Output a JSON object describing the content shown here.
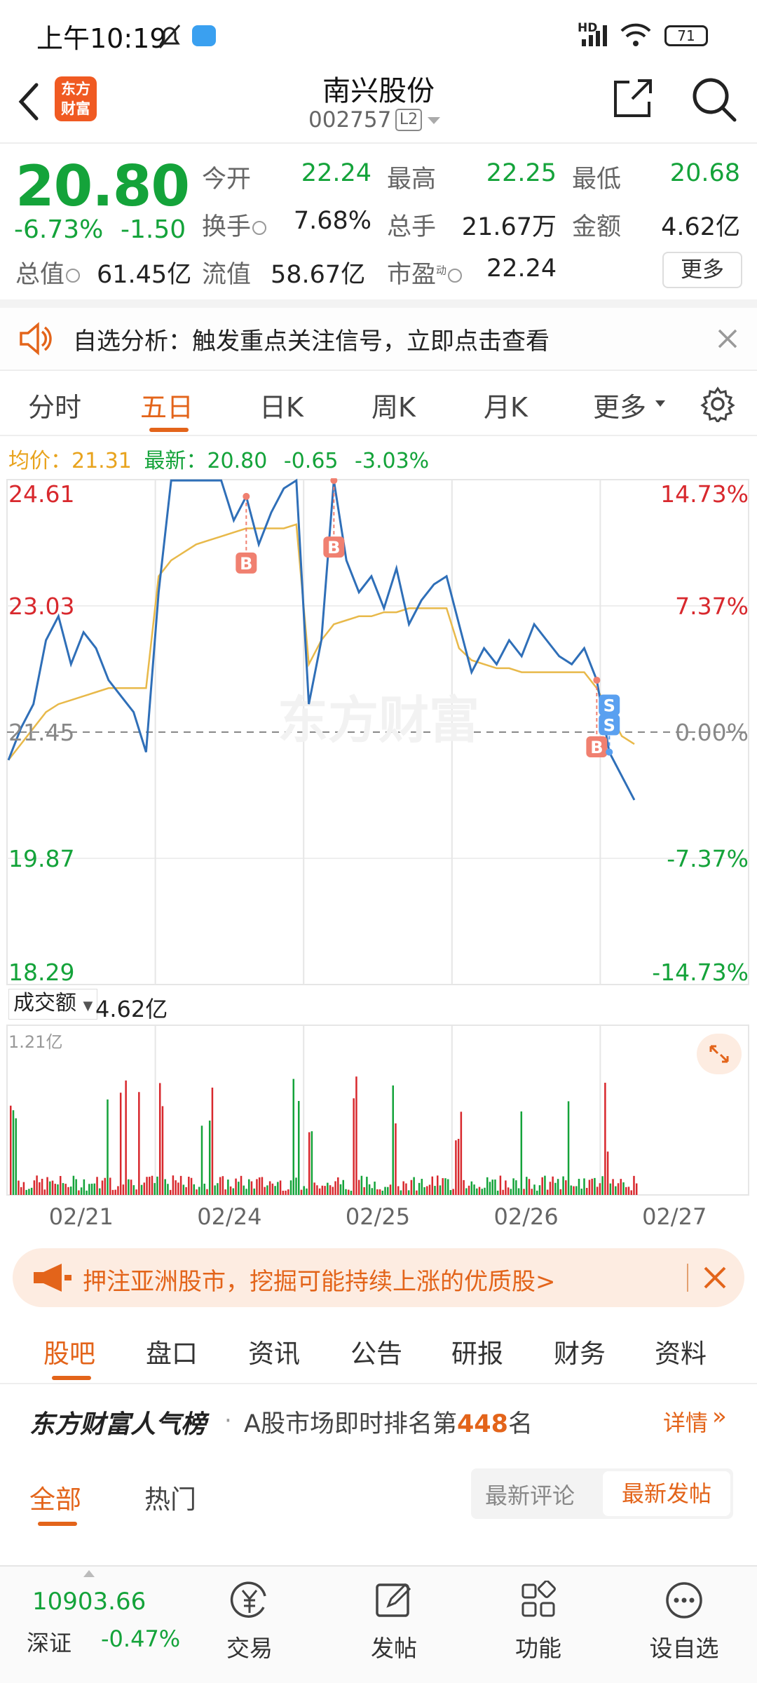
{
  "status_bar": {
    "time": "上午10:19",
    "battery": "71",
    "net": "HD"
  },
  "header": {
    "logo_text_1": "东方",
    "logo_text_2": "财富",
    "name": "南兴股份",
    "code": "002757",
    "level": "L2"
  },
  "quote": {
    "price": "20.80",
    "change_pct": "-6.73%",
    "change": "-1.50",
    "open_label": "今开",
    "open": "22.24",
    "high_label": "最高",
    "high": "22.25",
    "low_label": "最低",
    "low": "20.68",
    "turnover_label": "换手",
    "turnover": "7.68%",
    "volume_label": "总手",
    "volume": "21.67万",
    "amount_label": "金额",
    "amount": "4.62亿",
    "mcap_label": "总值",
    "mcap": "61.45亿",
    "float_label": "流值",
    "float": "58.67亿",
    "pe_label": "市盈",
    "pe_sup": "动",
    "pe": "22.24",
    "more": "更多"
  },
  "banner": {
    "text": "自选分析：触发重点关注信号，立即点击查看"
  },
  "tabs": {
    "items": [
      "分时",
      "五日",
      "日K",
      "周K",
      "月K",
      "更多"
    ],
    "active": "五日"
  },
  "chart_info": {
    "avg_label": "均价：",
    "avg": "21.31",
    "latest_label": "最新：",
    "latest": "20.80",
    "chg": "-0.65",
    "chg_pct": "-3.03%"
  },
  "chart_data": {
    "type": "line",
    "title": "",
    "y_labels_left": [
      "24.61",
      "23.03",
      "21.45",
      "19.87",
      "18.29"
    ],
    "y_labels_right": [
      "14.73%",
      "7.37%",
      "0.00%",
      "-7.37%",
      "-14.73%"
    ],
    "ylim": [
      18.29,
      24.61
    ],
    "reference": 21.45,
    "x_labels": [
      "02/21",
      "02/24",
      "02/25",
      "02/26",
      "02/27"
    ],
    "series": [],
    "price_points": [
      21.1,
      21.5,
      21.8,
      22.6,
      22.9,
      22.3,
      22.7,
      22.5,
      22.1,
      21.9,
      21.7,
      21.2,
      23.2,
      24.6,
      24.6,
      24.6,
      24.6,
      24.6,
      24.1,
      24.4,
      23.8,
      24.2,
      24.5,
      24.6,
      21.8,
      22.6,
      24.6,
      23.6,
      23.2,
      23.4,
      23.0,
      23.5,
      22.8,
      23.1,
      23.3,
      23.4,
      22.8,
      22.2,
      22.5,
      22.3,
      22.6,
      22.4,
      22.8,
      22.6,
      22.4,
      22.3,
      22.5,
      22.1,
      21.2,
      20.9,
      20.6
    ],
    "avg_points": [
      21.1,
      21.3,
      21.5,
      21.7,
      21.8,
      21.85,
      21.9,
      21.95,
      22.0,
      22.0,
      22.0,
      22.0,
      23.4,
      23.6,
      23.7,
      23.8,
      23.85,
      23.9,
      23.95,
      24.0,
      24.0,
      24.0,
      24.0,
      24.05,
      22.3,
      22.6,
      22.8,
      22.85,
      22.9,
      22.9,
      22.95,
      22.95,
      23.0,
      23.0,
      23.0,
      23.0,
      22.5,
      22.35,
      22.3,
      22.25,
      22.25,
      22.2,
      22.2,
      22.2,
      22.2,
      22.2,
      22.2,
      22.0,
      21.7,
      21.4,
      21.3
    ],
    "markers": [
      "B",
      "B",
      "B",
      "S",
      "S"
    ],
    "volume_label": "成交额",
    "volume_value": "4.62亿",
    "volume_max": "1.21亿",
    "watermark": "东方财富"
  },
  "promo": {
    "text": "押注亚洲股市，挖掘可能持续上涨的优质股>"
  },
  "subtabs": {
    "items": [
      "股吧",
      "盘口",
      "资讯",
      "公告",
      "研报",
      "财务",
      "资料"
    ],
    "active": "股吧"
  },
  "rank": {
    "brand": "东方财富人气榜",
    "prefix": "A股市场即时排名第",
    "number": "448",
    "suffix": "名",
    "detail": "详情"
  },
  "filters": {
    "all": "全部",
    "hot": "热门",
    "latest_comment": "最新评论",
    "latest_post": "最新发帖"
  },
  "bottom": {
    "index_value": "10903.66",
    "index_name": "深证",
    "index_chg": "-0.47%",
    "items": [
      "交易",
      "发帖",
      "功能",
      "设自选"
    ]
  }
}
